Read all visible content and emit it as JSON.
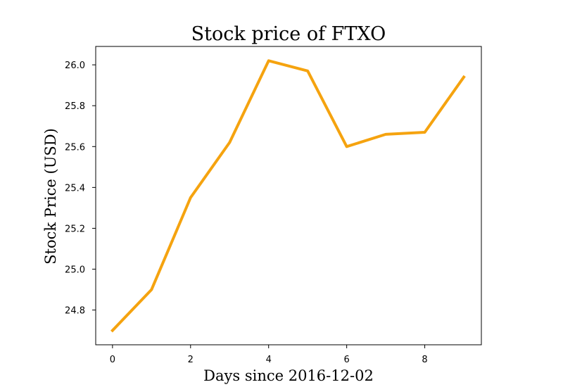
{
  "chart_data": {
    "type": "line",
    "title": "Stock price of FTXO",
    "xlabel": "Days since 2016-12-02",
    "ylabel": "Stock Price (USD)",
    "x": [
      0,
      1,
      2,
      3,
      4,
      5,
      6,
      7,
      8,
      9
    ],
    "series": [
      {
        "values": [
          24.7,
          24.9,
          25.35,
          25.62,
          26.02,
          25.97,
          25.6,
          25.66,
          25.67,
          25.94
        ],
        "color": "#f5a30f"
      }
    ],
    "xlim": [
      -0.43,
      9.45
    ],
    "ylim": [
      24.63,
      26.09
    ],
    "xticks": [
      0,
      2,
      4,
      6,
      8
    ],
    "xtick_labels": [
      "0",
      "2",
      "4",
      "6",
      "8"
    ],
    "yticks": [
      24.8,
      25.0,
      25.2,
      25.4,
      25.6,
      25.8,
      26.0
    ],
    "ytick_labels": [
      "24.8",
      "25.0",
      "25.2",
      "25.4",
      "25.6",
      "25.8",
      "26.0"
    ],
    "grid": false,
    "legend": "none"
  }
}
